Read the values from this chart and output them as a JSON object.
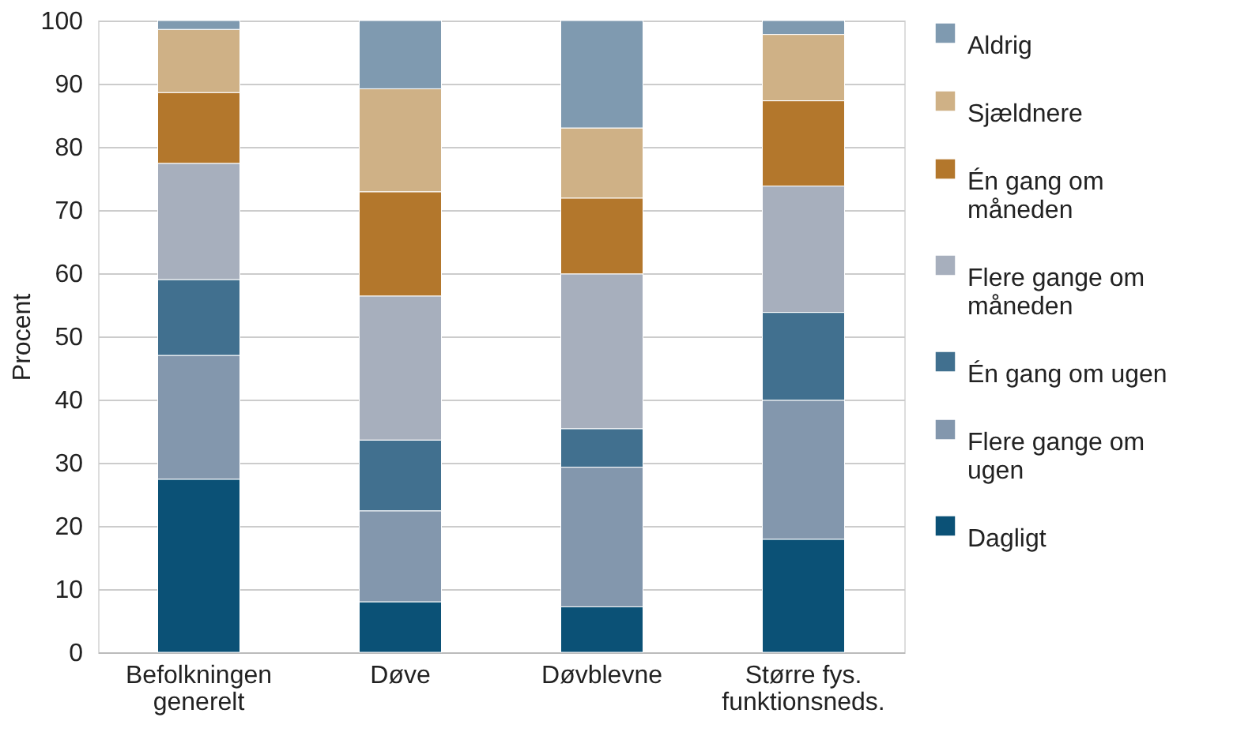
{
  "chart_data": {
    "type": "bar",
    "stacked": true,
    "ylabel": "Procent",
    "categories": [
      "Befolkningen generelt",
      "Døve",
      "Døvblevne",
      "Større fys. funktionsneds."
    ],
    "series": [
      {
        "name": "Dagligt",
        "color": "#0b5176",
        "values": [
          27.4,
          8.0,
          7.2,
          17.9
        ]
      },
      {
        "name": "Flere gange om ugen",
        "color": "#8397ad",
        "values": [
          19.6,
          14.4,
          22.1,
          22.0
        ]
      },
      {
        "name": "Én gang om ugen",
        "color": "#41708f",
        "values": [
          12.0,
          11.2,
          6.1,
          13.9
        ]
      },
      {
        "name": "Flere gange om måneden",
        "color": "#a7afbd",
        "values": [
          18.4,
          22.8,
          24.5,
          20.0
        ]
      },
      {
        "name": "Én gang om måneden",
        "color": "#b3772c",
        "values": [
          11.2,
          16.5,
          12.0,
          13.5
        ]
      },
      {
        "name": "Sjældnere",
        "color": "#cfb186",
        "values": [
          10.0,
          16.3,
          11.1,
          10.5
        ]
      },
      {
        "name": "Aldrig",
        "color": "#7f9ab0",
        "values": [
          1.4,
          10.8,
          17.0,
          2.2
        ]
      }
    ],
    "ylim": [
      0,
      100
    ],
    "yticks": [
      0,
      10,
      20,
      30,
      40,
      50,
      60,
      70,
      80,
      90,
      100
    ],
    "grid": "y",
    "legend": "right"
  }
}
